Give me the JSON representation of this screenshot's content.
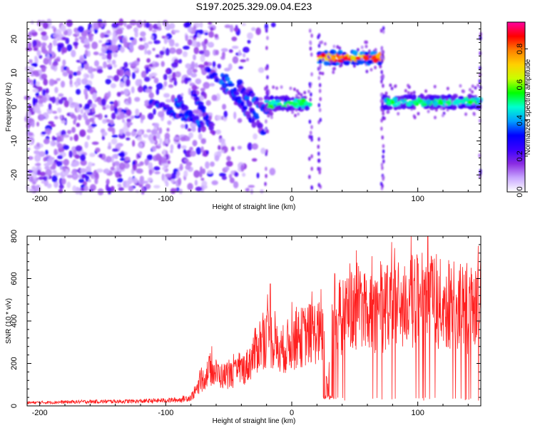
{
  "title": "S197.2025.329.09.04.E23",
  "colors": {
    "snr_line": "#ff2020",
    "colormap": [
      "#ffffff",
      "#c8a6ff",
      "#8a2be2",
      "#3a00ff",
      "#0000ff",
      "#00a0ff",
      "#00ffd0",
      "#00ff00",
      "#c8ff00",
      "#ffd000",
      "#ff8000",
      "#ff0000",
      "#ff00a0"
    ]
  },
  "chart_data": [
    {
      "type": "heatmap",
      "name": "spectrogram",
      "xlabel": "Height of straight line (km)",
      "ylabel": "Frequency (Hz)",
      "xlim": [
        -210,
        150
      ],
      "ylim": [
        -25,
        25
      ],
      "xticks": [
        -200,
        -100,
        0,
        100
      ],
      "xtick_labels": [
        "-200",
        "-100",
        "0",
        "100"
      ],
      "yticks": [
        -20,
        -10,
        0,
        10,
        20
      ],
      "ytick_labels": [
        "-20",
        "-10",
        "0",
        "10",
        "20"
      ],
      "colorbar": {
        "label": "Normalized spectral amplitude",
        "range": [
          0,
          0.95
        ],
        "ticks": [
          0.0,
          0.2,
          0.4,
          0.6,
          0.8
        ],
        "tick_labels": [
          "0.0",
          "0.2",
          "0.4",
          "0.6",
          "0.8"
        ]
      },
      "features": [
        {
          "name": "noise",
          "x": [
            -210,
            -80
          ],
          "y": [
            -25,
            25
          ],
          "amplitude": 0.1
        },
        {
          "name": "chirps",
          "x": [
            -115,
            -20
          ],
          "freq_start": 12,
          "freq_end": -8,
          "amplitude": 0.3
        },
        {
          "name": "band-low-a",
          "x": [
            -20,
            15
          ],
          "freq": 1,
          "amplitude": 0.6
        },
        {
          "name": "band-high",
          "x": [
            22,
            72
          ],
          "freq": 14.5,
          "amplitude": 0.95
        },
        {
          "name": "band-low-b",
          "x": [
            72,
            150
          ],
          "freq": 1.5,
          "amplitude": 0.6
        }
      ]
    },
    {
      "type": "line",
      "name": "snr",
      "xlabel": "Height of straight line (km)",
      "ylabel": "SNR (10 * v/v)",
      "xlim": [
        -210,
        150
      ],
      "ylim": [
        0,
        800
      ],
      "xticks": [
        -200,
        -100,
        0,
        100
      ],
      "xtick_labels": [
        "-200",
        "-100",
        "0",
        "100"
      ],
      "yticks": [
        0,
        200,
        400,
        600,
        800
      ],
      "ytick_labels": [
        "0",
        "200",
        "400",
        "600",
        "800"
      ],
      "series": [
        {
          "name": "SNR",
          "x": [
            -210,
            -160,
            -120,
            -90,
            -80,
            -72,
            -65,
            -55,
            -45,
            -35,
            -25,
            -18,
            -10,
            0,
            10,
            20,
            25,
            28,
            32,
            40,
            50,
            60,
            70,
            80,
            90,
            100,
            110,
            120,
            130,
            140,
            150
          ],
          "y": [
            15,
            20,
            22,
            28,
            40,
            110,
            170,
            140,
            150,
            190,
            300,
            330,
            250,
            300,
            330,
            350,
            330,
            100,
            380,
            420,
            470,
            460,
            440,
            470,
            480,
            500,
            520,
            470,
            480,
            440,
            500
          ],
          "peaks": [
            {
              "x": -17,
              "y": 575
            },
            {
              "x": 108,
              "y": 800
            }
          ]
        }
      ]
    }
  ]
}
